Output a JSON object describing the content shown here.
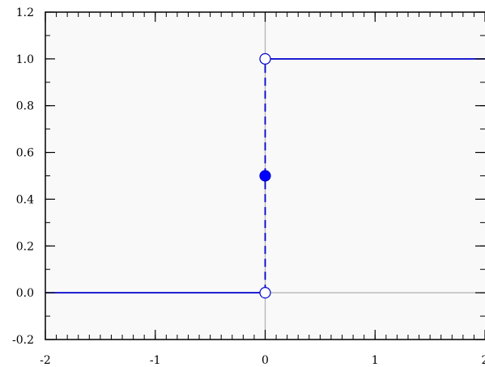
{
  "chart_data": {
    "type": "line",
    "title": "",
    "xlabel": "",
    "ylabel": "",
    "xlim": [
      -2,
      2
    ],
    "ylim": [
      -0.2,
      1.2
    ],
    "x_ticks": [
      -2,
      -1,
      0,
      1,
      2
    ],
    "x_tick_labels": [
      "-2",
      "-1",
      "0",
      "1",
      "2"
    ],
    "y_ticks": [
      -0.2,
      0.0,
      0.2,
      0.4,
      0.6,
      0.8,
      1.0,
      1.2
    ],
    "y_tick_labels": [
      "-0.2",
      "0.0",
      "0.2",
      "0.4",
      "0.6",
      "0.8",
      "1.0",
      "1.2"
    ],
    "grid": false,
    "background": "#f9f9f9",
    "series": [
      {
        "segment": "lower",
        "style": "solid",
        "color": "#0000cc",
        "points": [
          [
            -2,
            0
          ],
          [
            0,
            0
          ]
        ]
      },
      {
        "segment": "upper",
        "style": "solid",
        "color": "#0000cc",
        "points": [
          [
            0,
            1
          ],
          [
            2,
            1
          ]
        ]
      },
      {
        "segment": "jump",
        "style": "dashed",
        "color": "#0000cc",
        "points": [
          [
            0,
            0
          ],
          [
            0,
            1
          ]
        ]
      }
    ],
    "markers": [
      {
        "x": 0,
        "y": 0,
        "filled": false
      },
      {
        "x": 0,
        "y": 1,
        "filled": false
      },
      {
        "x": 0,
        "y": 0.5,
        "filled": true
      }
    ],
    "colors": {
      "line": "#0000cc",
      "marker_fill": "#0000ff",
      "axis_zero": "#b0b0b0"
    }
  }
}
